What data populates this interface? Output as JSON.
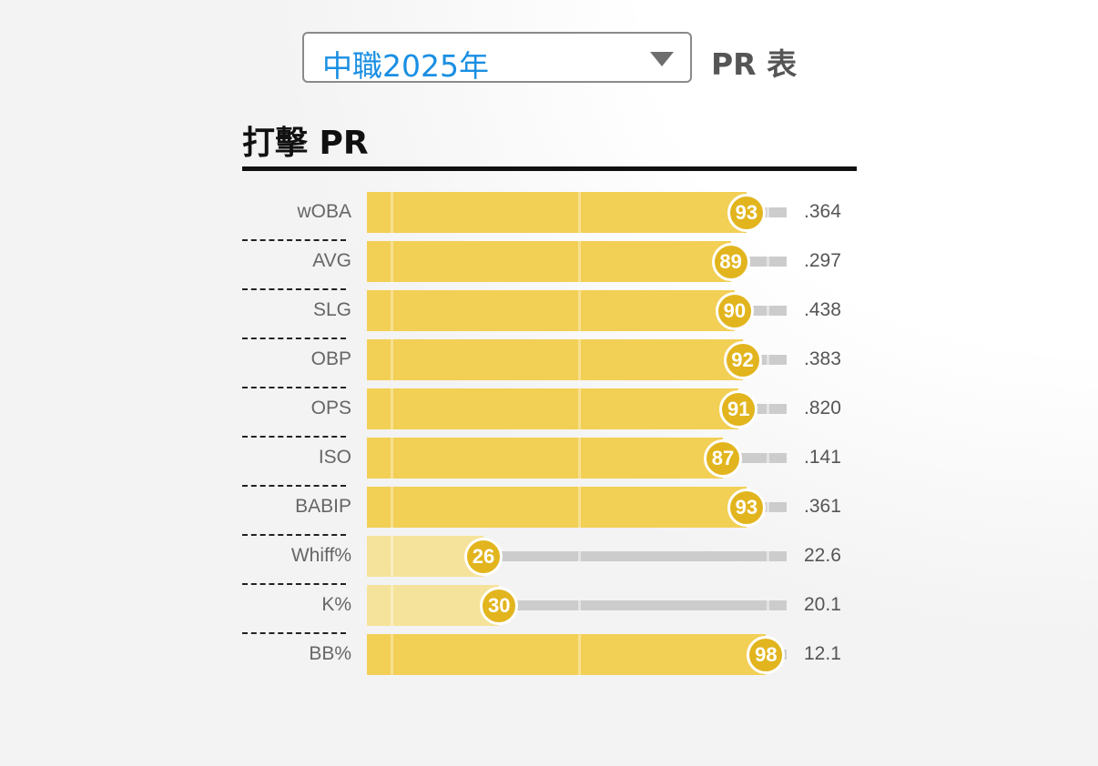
{
  "header": {
    "season_select": {
      "value": "中職2025年",
      "icon": "caret-down-icon"
    },
    "pr_table_label": "PR 表"
  },
  "section": {
    "title": "打擊 PR"
  },
  "colors": {
    "bar_high": "#F2CF55",
    "bar_low": "#F6E39B",
    "bubble": "#E2B51E",
    "track": "#CCCCCC",
    "select_text": "#1A8FE3"
  },
  "rows": [
    {
      "label": "wOBA",
      "pr": 93,
      "value": ".364",
      "low": false
    },
    {
      "label": "AVG",
      "pr": 89,
      "value": ".297",
      "low": false
    },
    {
      "label": "SLG",
      "pr": 90,
      "value": ".438",
      "low": false
    },
    {
      "label": "OBP",
      "pr": 92,
      "value": ".383",
      "low": false
    },
    {
      "label": "OPS",
      "pr": 91,
      "value": ".820",
      "low": false
    },
    {
      "label": "ISO",
      "pr": 87,
      "value": ".141",
      "low": false
    },
    {
      "label": "BABIP",
      "pr": 93,
      "value": ".361",
      "low": false
    },
    {
      "label": "Whiff%",
      "pr": 26,
      "value": "22.6",
      "low": true
    },
    {
      "label": "K%",
      "pr": 30,
      "value": "20.1",
      "low": true
    },
    {
      "label": "BB%",
      "pr": 98,
      "value": "12.1",
      "low": false
    }
  ],
  "chart_data": {
    "type": "bar",
    "orientation": "horizontal",
    "title": "打擊 PR",
    "categories": [
      "wOBA",
      "AVG",
      "SLG",
      "OBP",
      "OPS",
      "ISO",
      "BABIP",
      "Whiff%",
      "K%",
      "BB%"
    ],
    "series": [
      {
        "name": "PR",
        "values": [
          93,
          89,
          90,
          92,
          91,
          87,
          93,
          26,
          30,
          98
        ]
      }
    ],
    "stat_values": [
      ".364",
      ".297",
      ".438",
      ".383",
      ".820",
      ".141",
      ".361",
      "22.6",
      "20.1",
      "12.1"
    ],
    "xlim": [
      0,
      100
    ],
    "xlabel": "",
    "ylabel": "",
    "grid": true,
    "legend": "none"
  }
}
